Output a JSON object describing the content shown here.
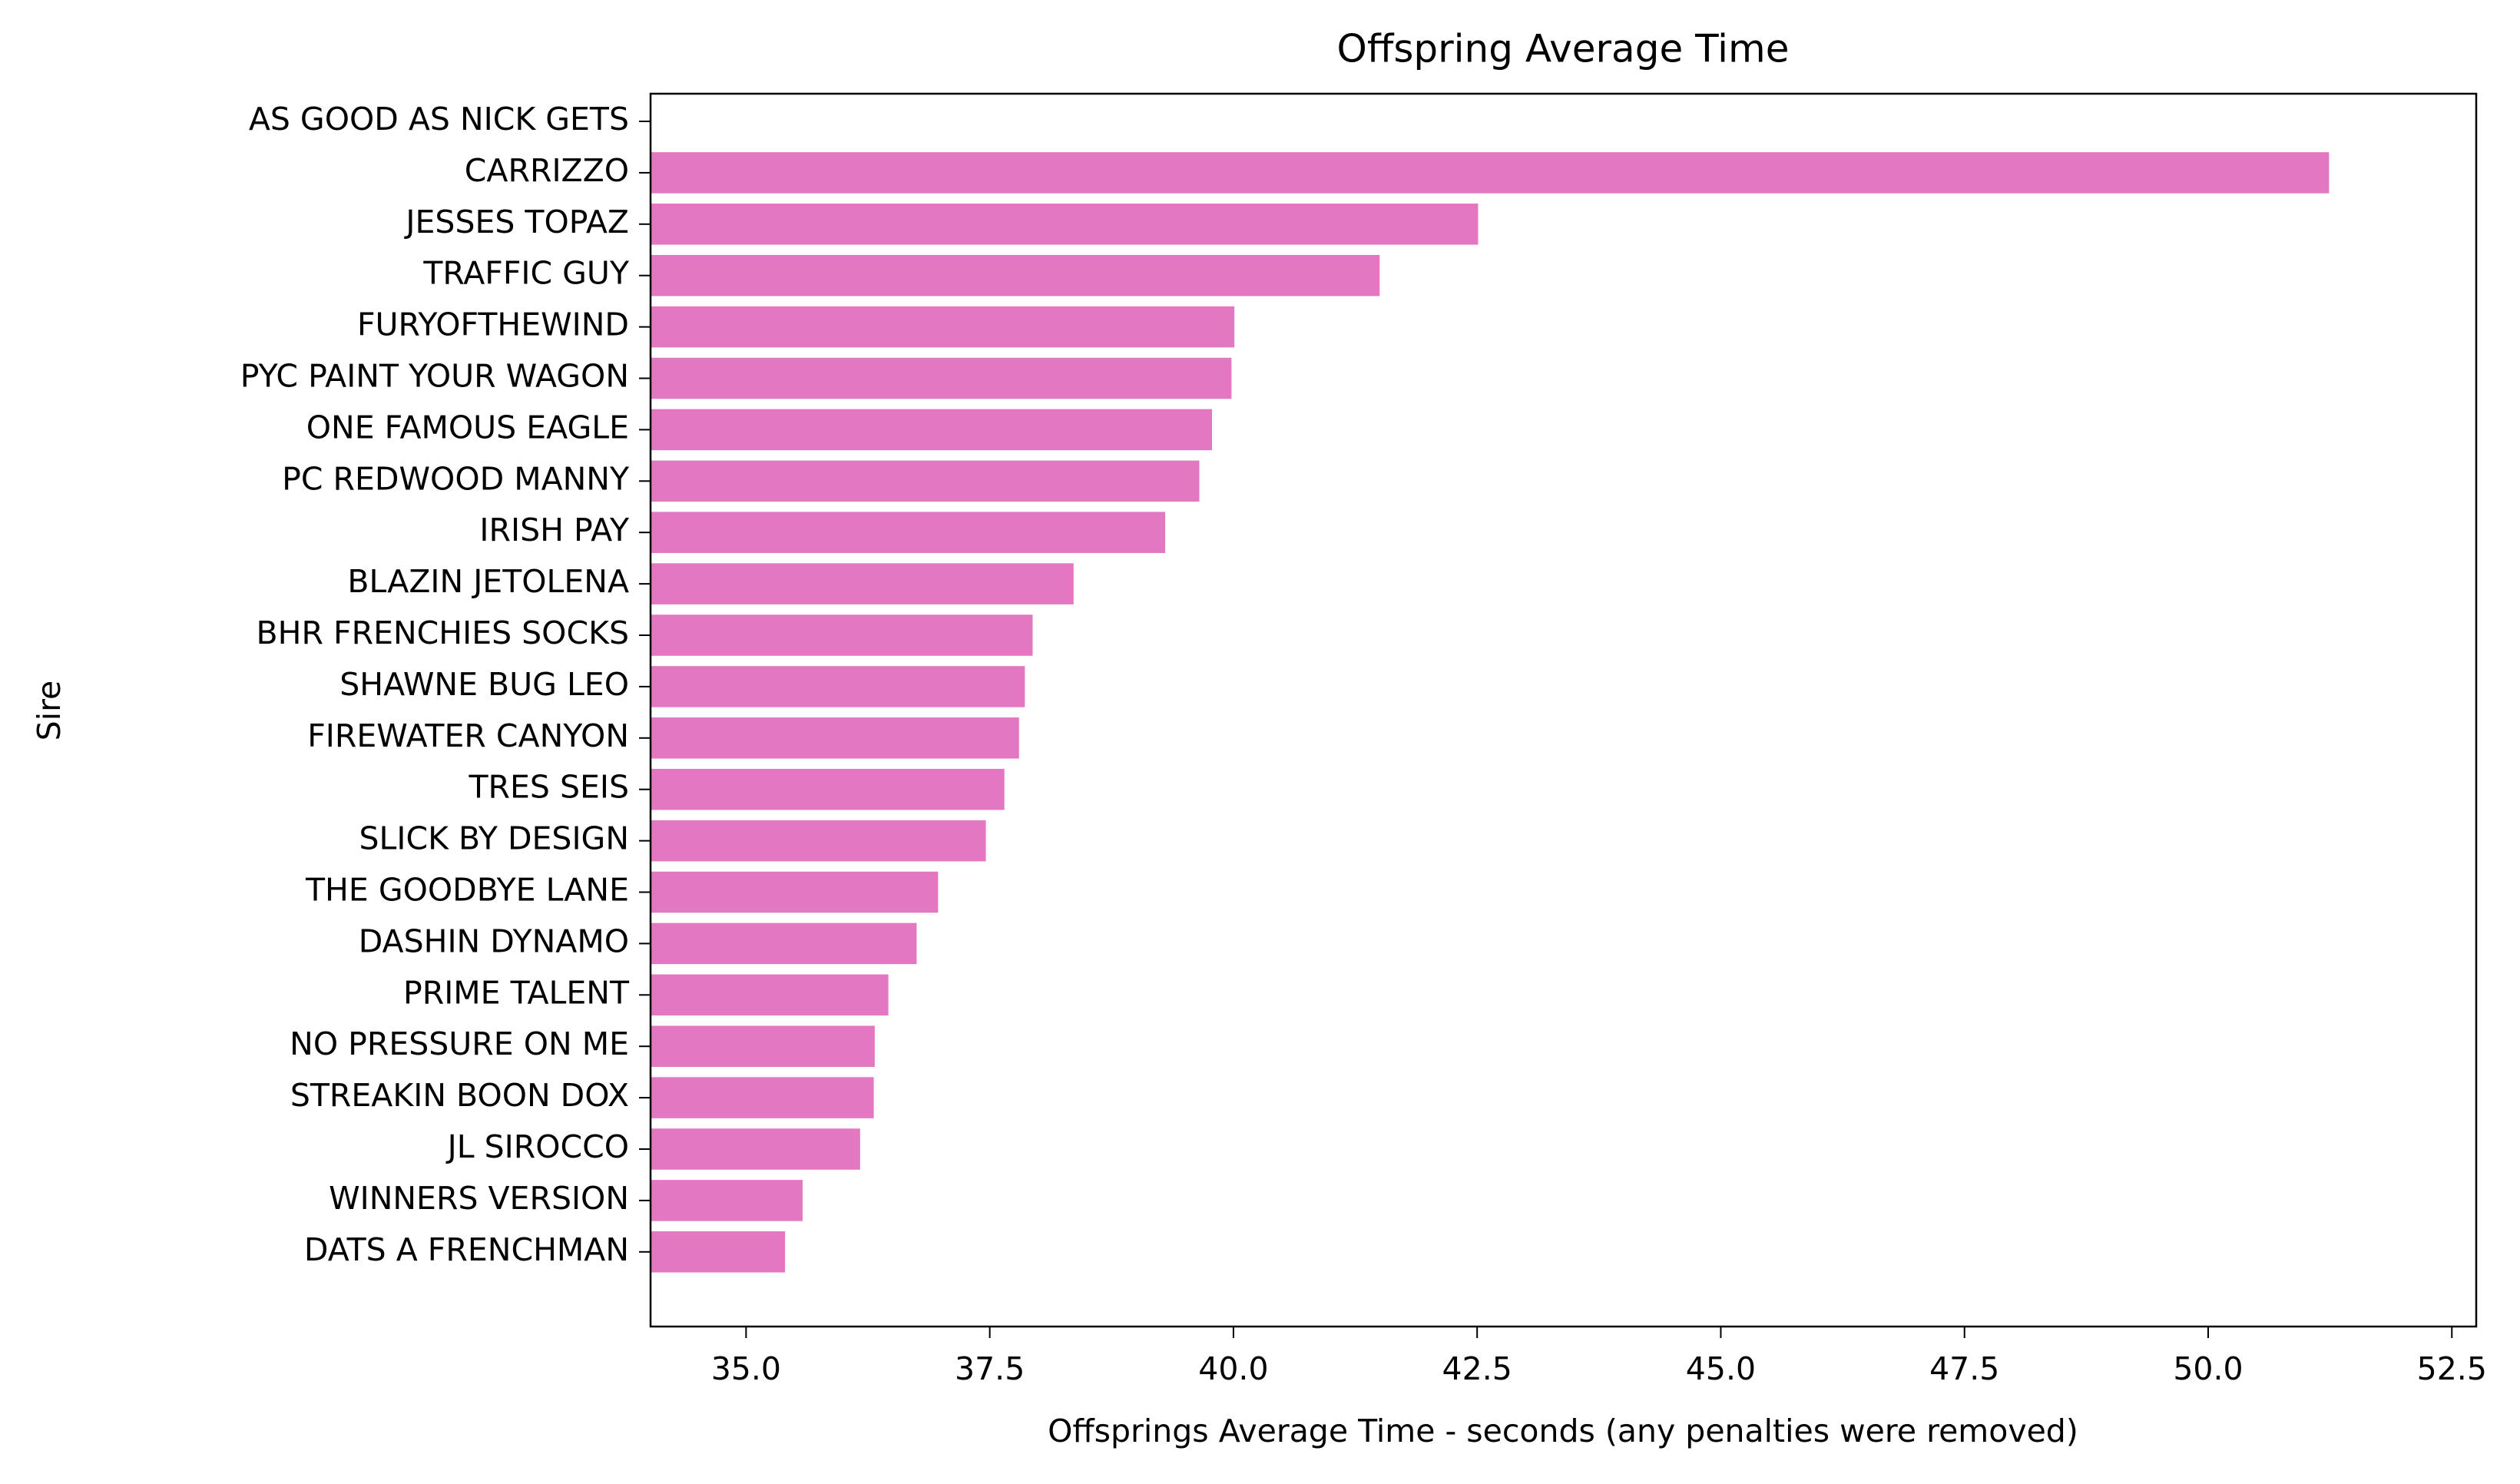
{
  "chart_data": {
    "type": "barh",
    "title": "Offspring Average Time",
    "xlabel": "Offsprings Average Time - seconds (any penalties were removed)",
    "ylabel": "Sire",
    "categories": [
      "AS GOOD AS NICK GETS",
      "CARRIZZO",
      "JESSES TOPAZ",
      "TRAFFIC GUY",
      "FURYOFTHEWIND",
      "PYC PAINT YOUR WAGON",
      "ONE FAMOUS EAGLE",
      "PC REDWOOD MANNY",
      "IRISH PAY",
      "BLAZIN JETOLENA",
      "BHR FRENCHIES SOCKS",
      "SHAWNE BUG LEO",
      "FIREWATER CANYON",
      "TRES SEIS",
      "SLICK BY DESIGN",
      "THE GOODBYE LANE",
      "DASHIN DYNAMO",
      "PRIME TALENT",
      "NO PRESSURE ON ME",
      "STREAKIN BOON DOX",
      "JL SIROCCO",
      "WINNERS VERSION",
      "DATS A FRENCHMAN"
    ],
    "values": [
      null,
      51.24,
      42.51,
      41.5,
      40.01,
      39.98,
      39.78,
      39.65,
      39.3,
      38.36,
      37.94,
      37.86,
      37.8,
      37.65,
      37.46,
      36.97,
      36.75,
      36.46,
      36.32,
      36.31,
      36.17,
      35.58,
      35.4
    ],
    "color": "#e377c2",
    "xlim": [
      34.02,
      52.75
    ],
    "xticks": [
      {
        "value": 35,
        "label": "35.0"
      },
      {
        "value": 37.5,
        "label": "37.5"
      },
      {
        "value": 40,
        "label": "40.0"
      },
      {
        "value": 42.5,
        "label": "42.5"
      },
      {
        "value": 45,
        "label": "45.0"
      },
      {
        "value": 47.5,
        "label": "47.5"
      },
      {
        "value": 50,
        "label": "50.0"
      },
      {
        "value": 52.5,
        "label": "52.5"
      }
    ],
    "grid": false
  }
}
